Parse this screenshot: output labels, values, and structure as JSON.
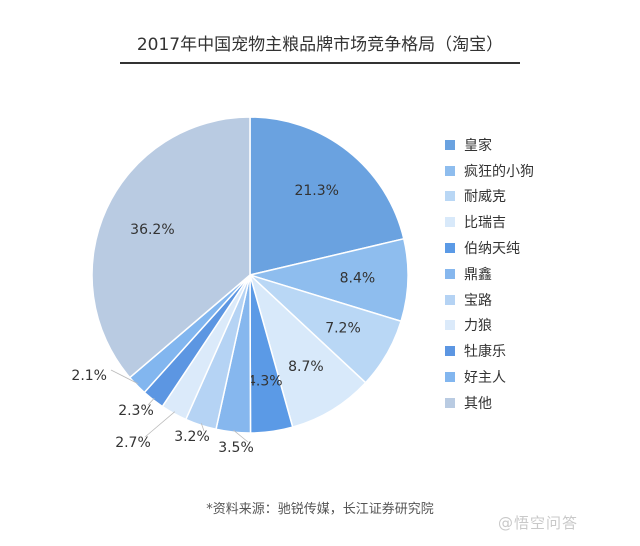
{
  "chart_data": {
    "type": "pie",
    "title": "2017年中国宠物主粮品牌市场竞争格局（淘宝）",
    "slices": [
      {
        "label": "皇家",
        "value": 21.3,
        "text": "21.3%",
        "color": "#6aa2e0"
      },
      {
        "label": "疯狂的小狗",
        "value": 8.4,
        "text": "8.4%",
        "color": "#8ebdee"
      },
      {
        "label": "耐威克",
        "value": 7.2,
        "text": "7.2%",
        "color": "#b9d7f5"
      },
      {
        "label": "比瑞吉",
        "value": 8.7,
        "text": "8.7%",
        "color": "#d8e9fa"
      },
      {
        "label": "伯纳天纯",
        "value": 4.3,
        "text": "4.3%",
        "color": "#5b9ae6"
      },
      {
        "label": "鼎鑫",
        "value": 3.5,
        "text": "3.5%",
        "color": "#86b7ee"
      },
      {
        "label": "宝路",
        "value": 3.2,
        "text": "3.2%",
        "color": "#b5d3f4"
      },
      {
        "label": "力狼",
        "value": 2.7,
        "text": "2.7%",
        "color": "#dbeafa"
      },
      {
        "label": "牡康乐",
        "value": 2.3,
        "text": "2.3%",
        "color": "#5c96e2"
      },
      {
        "label": "好主人",
        "value": 2.1,
        "text": "2.1%",
        "color": "#82b6ef"
      },
      {
        "label": "其他",
        "value": 36.2,
        "text": "36.2%",
        "color": "#b9cbe2"
      }
    ],
    "legend_position": "right"
  },
  "source": "*资料来源：驰锐传媒，长江证券研究院",
  "watermark": "@悟空问答"
}
